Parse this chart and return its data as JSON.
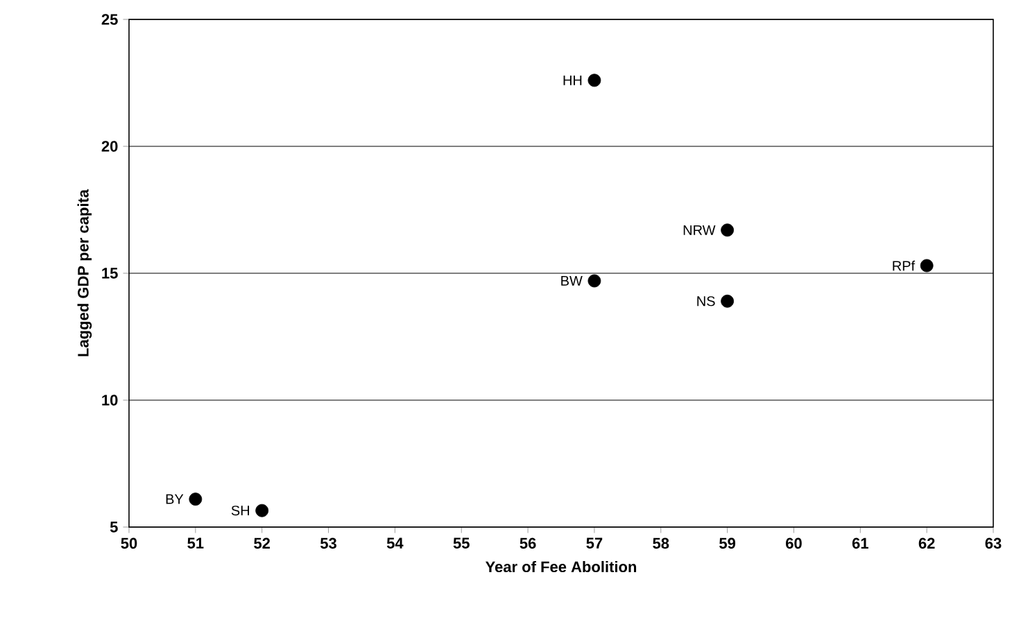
{
  "chart_data": {
    "type": "scatter",
    "xlabel": "Year of Fee Abolition",
    "ylabel": "Lagged GDP per capita",
    "x": [
      51,
      52,
      57,
      57,
      59,
      59,
      62
    ],
    "values": [
      6.1,
      5.65,
      22.6,
      14.7,
      16.7,
      13.9,
      15.3
    ],
    "color": "#000000",
    "marker": "circle",
    "xlim": [
      50,
      63
    ],
    "xticks": [
      50,
      51,
      52,
      53,
      54,
      55,
      56,
      57,
      58,
      59,
      60,
      61,
      62,
      63
    ],
    "ylim": [
      5,
      25
    ],
    "yticks": [
      5,
      10,
      15,
      20,
      25
    ],
    "grid": "y",
    "annotations": [
      {
        "text": "BY",
        "x": 51,
        "y": 6.1
      },
      {
        "text": "SH",
        "x": 52,
        "y": 5.65
      },
      {
        "text": "HH",
        "x": 57,
        "y": 22.6
      },
      {
        "text": "BW",
        "x": 57,
        "y": 14.7
      },
      {
        "text": "NRW",
        "x": 59,
        "y": 16.7
      },
      {
        "text": "NS",
        "x": 59,
        "y": 13.9
      },
      {
        "text": "RPf",
        "x": 62,
        "y": 15.3
      }
    ]
  }
}
